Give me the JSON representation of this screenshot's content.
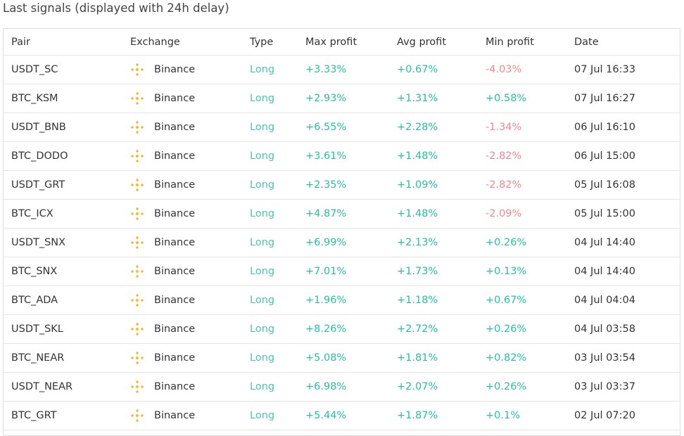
{
  "title": "Last signals (displayed with 24h delay)",
  "table": {
    "header": [
      "Pair",
      "Exchange",
      "Type",
      "Max profit",
      "Avg profit",
      "Min profit",
      "Date"
    ],
    "rows": [
      [
        "USDT_SC",
        "Binance",
        "Long",
        "+3.33%",
        "+0.67%",
        "-4.03%",
        "07 Jul 16:33"
      ],
      [
        "BTC_KSM",
        "Binance",
        "Long",
        "+2.93%",
        "+1.31%",
        "+0.58%",
        "07 Jul 16:27"
      ],
      [
        "USDT_BNB",
        "Binance",
        "Long",
        "+6.55%",
        "+2.28%",
        "-1.34%",
        "06 Jul 16:10"
      ],
      [
        "BTC_DODO",
        "Binance",
        "Long",
        "+3.61%",
        "+1.48%",
        "-2.82%",
        "06 Jul 15:00"
      ],
      [
        "USDT_GRT",
        "Binance",
        "Long",
        "+2.35%",
        "+1.09%",
        "-2.82%",
        "05 Jul 16:08"
      ],
      [
        "BTC_ICX",
        "Binance",
        "Long",
        "+4.87%",
        "+1.48%",
        "-2.09%",
        "05 Jul 15:00"
      ],
      [
        "USDT_SNX",
        "Binance",
        "Long",
        "+6.99%",
        "+2.13%",
        "+0.26%",
        "04 Jul 14:40"
      ],
      [
        "BTC_SNX",
        "Binance",
        "Long",
        "+7.01%",
        "+1.73%",
        "+0.13%",
        "04 Jul 14:40"
      ],
      [
        "BTC_ADA",
        "Binance",
        "Long",
        "+1.96%",
        "+1.18%",
        "+0.67%",
        "04 Jul 04:04"
      ],
      [
        "USDT_SKL",
        "Binance",
        "Long",
        "+8.26%",
        "+2.72%",
        "+0.26%",
        "04 Jul 03:58"
      ],
      [
        "BTC_NEAR",
        "Binance",
        "Long",
        "+5.08%",
        "+1.81%",
        "+0.82%",
        "03 Jul 03:54"
      ],
      [
        "USDT_NEAR",
        "Binance",
        "Long",
        "+6.98%",
        "+2.07%",
        "+0.26%",
        "03 Jul 03:37"
      ],
      [
        "BTC_GRT",
        "Binance",
        "Long",
        "+5.44%",
        "+1.87%",
        "+0.1%",
        "02 Jul 07:20"
      ]
    ]
  }
}
